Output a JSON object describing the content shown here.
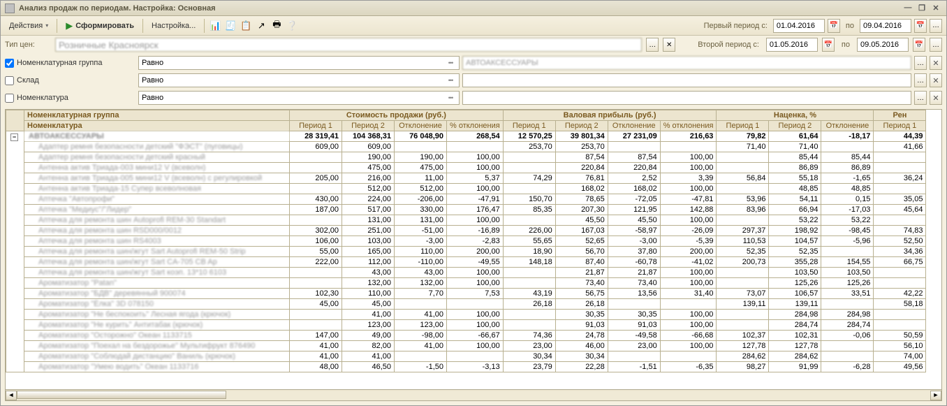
{
  "window": {
    "title": "Анализ продаж по периодам. Настройка: Основная"
  },
  "toolbar": {
    "actions": "Действия",
    "form": "Сформировать",
    "settings": "Настройка..."
  },
  "periods": {
    "label1": "Первый период с:",
    "label2": "Второй период с:",
    "po": "по",
    "d1a": "01.04.2016",
    "d1b": "09.04.2016",
    "d2a": "01.05.2016",
    "d2b": "09.05.2016"
  },
  "price": {
    "label": "Тип цен:",
    "value": "Розничные Красноярск"
  },
  "filters": [
    {
      "checked": true,
      "label": "Номенклатурная группа",
      "op": "Равно",
      "value": "АВТОАКСЕССУАРЫ"
    },
    {
      "checked": false,
      "label": "Склад",
      "op": "Равно",
      "value": ""
    },
    {
      "checked": false,
      "label": "Номенклатура",
      "op": "Равно",
      "value": ""
    }
  ],
  "headers": {
    "nomgroup": "Номенклатурная группа",
    "nom": "Номенклатура",
    "g1": "Стоимость продажи (руб.)",
    "g2": "Валовая прибыль (руб.)",
    "g3": "Наценка, %",
    "g4": "Рен",
    "p1": "Период 1",
    "p2": "Период 2",
    "dev": "Отклонение",
    "devp": "% отклонения"
  },
  "group": {
    "name": "АВТОАКСЕССУАРЫ",
    "v": [
      "28 319,41",
      "104 368,31",
      "76 048,90",
      "268,54",
      "12 570,25",
      "39 801,34",
      "27 231,09",
      "216,63",
      "79,82",
      "61,64",
      "-18,17",
      "44,39"
    ]
  },
  "rows": [
    {
      "n": "Адаптер ремня безопасности детский \"ФЭСТ\" (пуговицы)",
      "v": [
        "609,00",
        "609,00",
        "",
        "",
        "253,70",
        "253,70",
        "",
        "",
        "71,40",
        "71,40",
        "",
        "41,66"
      ]
    },
    {
      "n": "Адаптер ремня безопасности детский красный",
      "v": [
        "",
        "190,00",
        "190,00",
        "100,00",
        "",
        "87,54",
        "87,54",
        "100,00",
        "",
        "85,44",
        "85,44",
        ""
      ]
    },
    {
      "n": "Антенна актив Триада-003 мини12 V (всеволн)",
      "v": [
        "",
        "475,00",
        "475,00",
        "100,00",
        "",
        "220,84",
        "220,84",
        "100,00",
        "",
        "86,89",
        "86,89",
        ""
      ]
    },
    {
      "n": "Антенна актив Триада-005 мини12 V (всеволн) с регулировкой",
      "v": [
        "205,00",
        "216,00",
        "11,00",
        "5,37",
        "74,29",
        "76,81",
        "2,52",
        "3,39",
        "56,84",
        "55,18",
        "-1,65",
        "36,24"
      ]
    },
    {
      "n": "Антенна актив Триада-15 Супер всеволновая",
      "v": [
        "",
        "512,00",
        "512,00",
        "100,00",
        "",
        "168,02",
        "168,02",
        "100,00",
        "",
        "48,85",
        "48,85",
        ""
      ]
    },
    {
      "n": "Аптечка \"Автопрофи\"",
      "v": [
        "430,00",
        "224,00",
        "-206,00",
        "-47,91",
        "150,70",
        "78,65",
        "-72,05",
        "-47,81",
        "53,96",
        "54,11",
        "0,15",
        "35,05"
      ]
    },
    {
      "n": "Аптечка \"Медиус\"/\"Лидер\"",
      "v": [
        "187,00",
        "517,00",
        "330,00",
        "176,47",
        "85,35",
        "207,30",
        "121,95",
        "142,88",
        "83,96",
        "66,94",
        "-17,03",
        "45,64"
      ]
    },
    {
      "n": "Аптечка для ремонта шин Autoprofi REM-30 Standart",
      "v": [
        "",
        "131,00",
        "131,00",
        "100,00",
        "",
        "45,50",
        "45,50",
        "100,00",
        "",
        "53,22",
        "53,22",
        ""
      ]
    },
    {
      "n": "Аптечка для ремонта шин RSD000/0012",
      "v": [
        "302,00",
        "251,00",
        "-51,00",
        "-16,89",
        "226,00",
        "167,03",
        "-58,97",
        "-26,09",
        "297,37",
        "198,92",
        "-98,45",
        "74,83"
      ]
    },
    {
      "n": "Аптечка для ремонта шин RS4003",
      "v": [
        "106,00",
        "103,00",
        "-3,00",
        "-2,83",
        "55,65",
        "52,65",
        "-3,00",
        "-5,39",
        "110,53",
        "104,57",
        "-5,96",
        "52,50"
      ]
    },
    {
      "n": "Аптечка для ремонта шин/жгут Sart Autoprofi REM-50 Strip",
      "v": [
        "55,00",
        "165,00",
        "110,00",
        "200,00",
        "18,90",
        "56,70",
        "37,80",
        "200,00",
        "52,35",
        "52,35",
        "",
        "34,36"
      ]
    },
    {
      "n": "Аптечка для ремонта шин/жгут Sart CA-705 CB Ap",
      "v": [
        "222,00",
        "112,00",
        "-110,00",
        "-49,55",
        "148,18",
        "87,40",
        "-60,78",
        "-41,02",
        "200,73",
        "355,28",
        "154,55",
        "66,75"
      ]
    },
    {
      "n": "Аптечка для ремонта шин/жгут Sart коэп. 13*10 6103",
      "v": [
        "",
        "43,00",
        "43,00",
        "100,00",
        "",
        "21,87",
        "21,87",
        "100,00",
        "",
        "103,50",
        "103,50",
        ""
      ]
    },
    {
      "n": "Ароматизатор \"Patan\"",
      "v": [
        "",
        "132,00",
        "132,00",
        "100,00",
        "",
        "73,40",
        "73,40",
        "100,00",
        "",
        "125,26",
        "125,26",
        ""
      ]
    },
    {
      "n": "Ароматизатор \"БДВ\" деревянный 900074",
      "v": [
        "102,30",
        "110,00",
        "7,70",
        "7,53",
        "43,19",
        "56,75",
        "13,56",
        "31,40",
        "73,07",
        "106,57",
        "33,51",
        "42,22"
      ]
    },
    {
      "n": "Ароматизатор \"Ёлка\" 3D 078150",
      "v": [
        "45,00",
        "45,00",
        "",
        "",
        "26,18",
        "26,18",
        "",
        "",
        "139,11",
        "139,11",
        "",
        "58,18"
      ]
    },
    {
      "n": "Ароматизатор \"Не беспокоить\" Лесная ягода (крючок)",
      "v": [
        "",
        "41,00",
        "41,00",
        "100,00",
        "",
        "30,35",
        "30,35",
        "100,00",
        "",
        "284,98",
        "284,98",
        ""
      ]
    },
    {
      "n": "Ароматизатор \"Не курить\" Антитабак (крючок)",
      "v": [
        "",
        "123,00",
        "123,00",
        "100,00",
        "",
        "91,03",
        "91,03",
        "100,00",
        "",
        "284,74",
        "284,74",
        ""
      ]
    },
    {
      "n": "Ароматизатор \"Осторожно\" Океан 1133715",
      "v": [
        "147,00",
        "49,00",
        "-98,00",
        "-66,67",
        "74,36",
        "24,78",
        "-49,58",
        "-66,68",
        "102,37",
        "102,31",
        "-0,06",
        "50,59"
      ]
    },
    {
      "n": "Ароматизатор \"Поехал на бездорожье\" Мультифрукт 876490",
      "v": [
        "41,00",
        "82,00",
        "41,00",
        "100,00",
        "23,00",
        "46,00",
        "23,00",
        "100,00",
        "127,78",
        "127,78",
        "",
        "56,10"
      ]
    },
    {
      "n": "Ароматизатор \"Соблюдай дистанцию\" Ваниль (крючок)",
      "v": [
        "41,00",
        "41,00",
        "",
        "",
        "30,34",
        "30,34",
        "",
        "",
        "284,62",
        "284,62",
        "",
        "74,00"
      ]
    },
    {
      "n": "Ароматизатор \"Умею водить\" Океан 1133716",
      "v": [
        "48,00",
        "46,50",
        "-1,50",
        "-3,13",
        "23,79",
        "22,28",
        "-1,51",
        "-6,35",
        "98,27",
        "91,99",
        "-6,28",
        "49,56"
      ]
    }
  ]
}
